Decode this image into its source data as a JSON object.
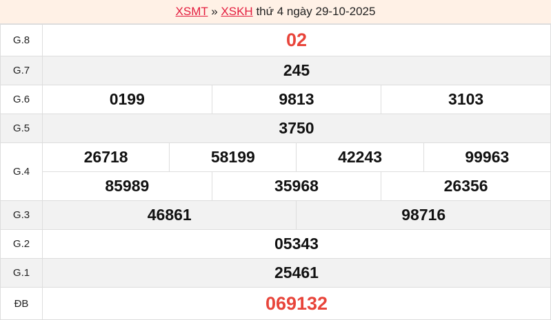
{
  "header": {
    "link1": "XSMT",
    "sep": "»",
    "link2": "XSKH",
    "text": "thứ 4 ngày 29-10-2025"
  },
  "colors": {
    "accent": "#e8443a",
    "link": "#e31b3d",
    "header_bg": "#fff1e6",
    "alt_row": "#f2f2f2"
  },
  "prizes": {
    "g8": {
      "label": "G.8",
      "values": [
        "02"
      ]
    },
    "g7": {
      "label": "G.7",
      "values": [
        "245"
      ]
    },
    "g6": {
      "label": "G.6",
      "values": [
        "0199",
        "9813",
        "3103"
      ]
    },
    "g5": {
      "label": "G.5",
      "values": [
        "3750"
      ]
    },
    "g4": {
      "label": "G.4",
      "values": [
        "26718",
        "58199",
        "42243",
        "99963",
        "85989",
        "35968",
        "26356"
      ]
    },
    "g3": {
      "label": "G.3",
      "values": [
        "46861",
        "98716"
      ]
    },
    "g2": {
      "label": "G.2",
      "values": [
        "05343"
      ]
    },
    "g1": {
      "label": "G.1",
      "values": [
        "25461"
      ]
    },
    "db": {
      "label": "ĐB",
      "values": [
        "069132"
      ]
    }
  }
}
